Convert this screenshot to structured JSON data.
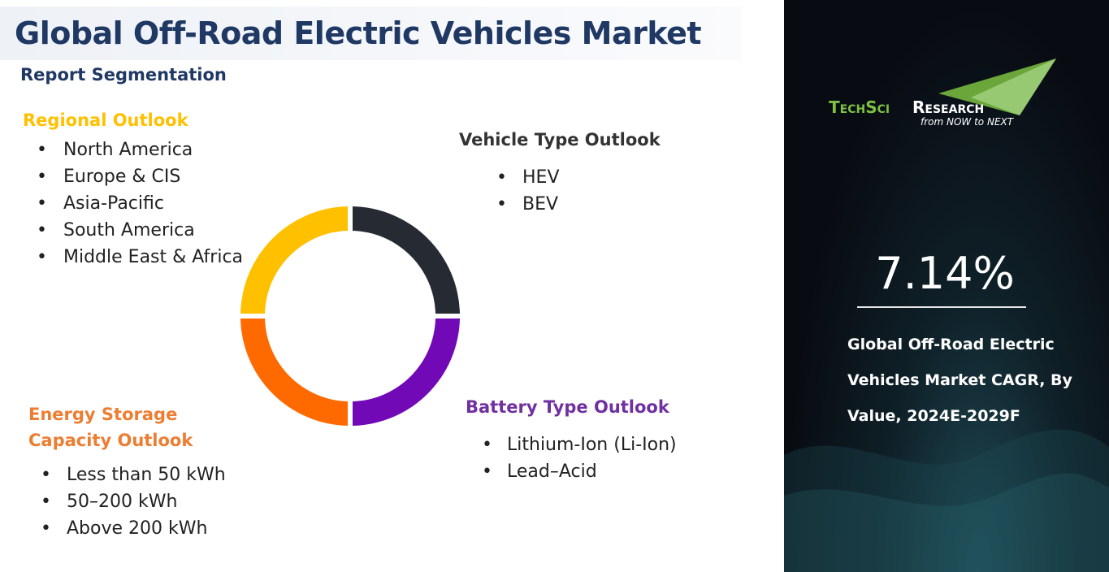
{
  "header": {
    "title": "Global Off-Road Electric Vehicles Market",
    "subtitle": "Report Segmentation"
  },
  "segments": [
    {
      "title": "Regional Outlook",
      "items": [
        "North America",
        "Europe & CIS",
        "Asia-Pacific",
        "South America",
        "Middle East & Africa"
      ]
    },
    {
      "title": "Vehicle Type Outlook",
      "items": [
        "HEV",
        "BEV"
      ]
    },
    {
      "title": "Battery Type Outlook",
      "items": [
        "Lithium-Ion (Li-Ion)",
        "Lead–Acid"
      ]
    },
    {
      "title": "Energy Storage Capacity Outlook",
      "items": [
        "Less than 50 kWh",
        "50–200 kWh",
        "Above 200 kWh"
      ]
    }
  ],
  "panel": {
    "logo": {
      "brand": "TechSci",
      "word": "Research",
      "tagline": "from NOW to NEXT"
    },
    "cagr": "7.14%",
    "description": "Global Off-Road Electric Vehicles Market CAGR, By Value, 2024E-2029F"
  }
}
